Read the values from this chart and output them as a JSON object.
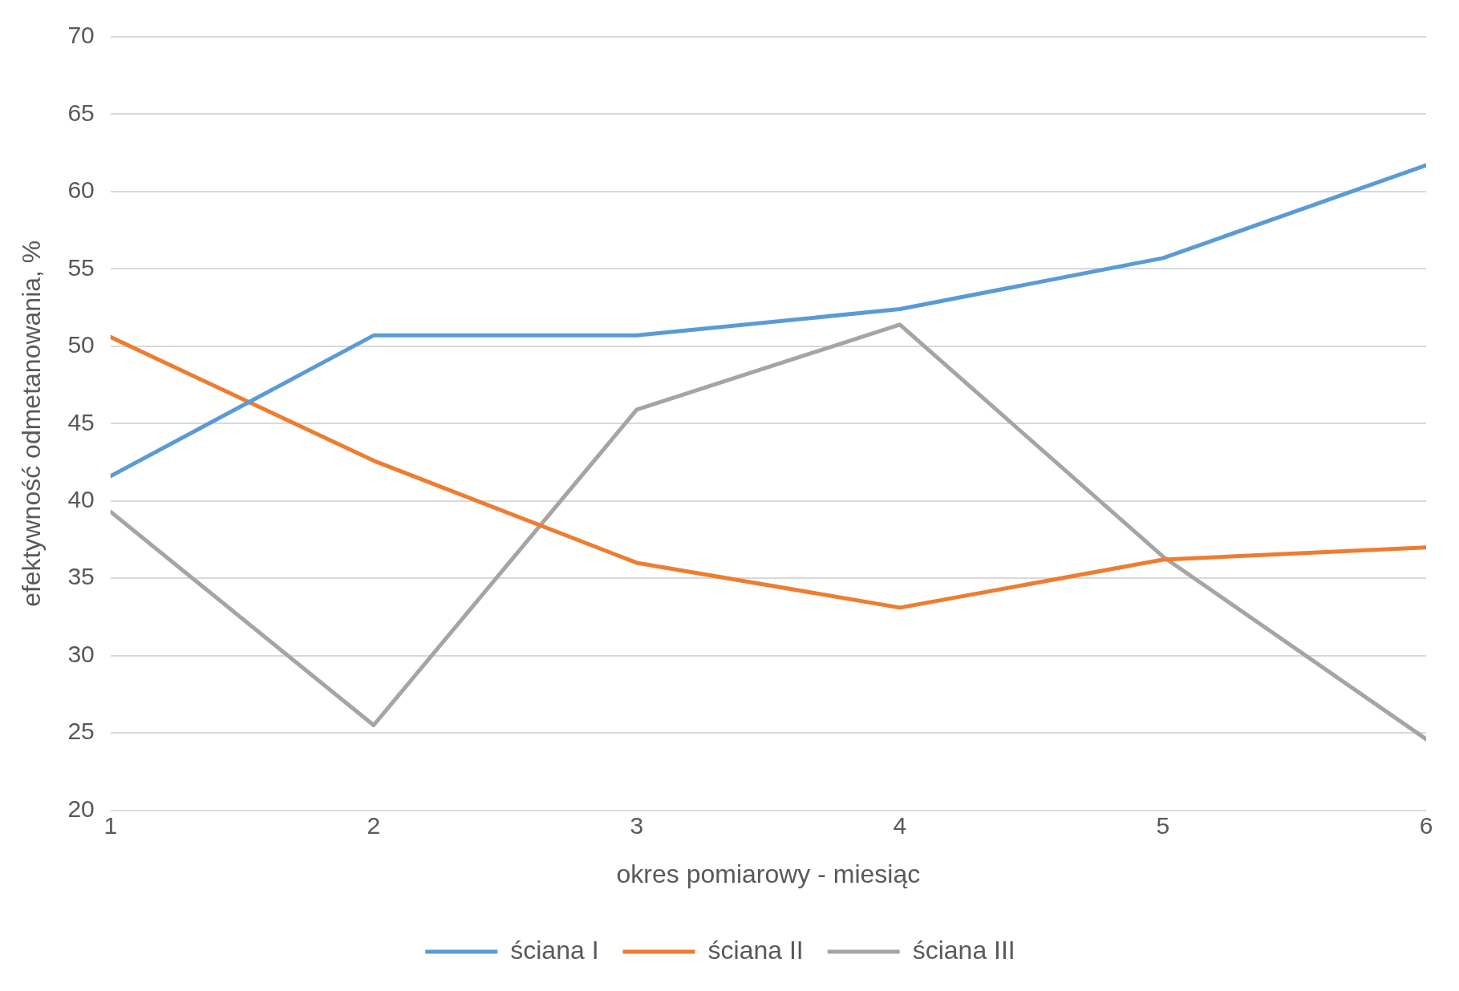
{
  "chart_data": {
    "type": "line",
    "xlabel": "okres pomiarowy - miesiąc",
    "ylabel": "efektywność odmetanowania, %",
    "x": [
      1,
      2,
      3,
      4,
      5,
      6
    ],
    "xlim": [
      1,
      6
    ],
    "xticks": [
      1,
      2,
      3,
      4,
      5,
      6
    ],
    "ylim": [
      20,
      70
    ],
    "yticks": [
      20,
      25,
      30,
      35,
      40,
      45,
      50,
      55,
      60,
      65,
      70
    ],
    "grid": "y",
    "legend": "bottom",
    "marker": "none",
    "line_style": "solid",
    "series": [
      {
        "name": "ściana I",
        "color": "#5b9bd5",
        "values": [
          41.6,
          50.7,
          50.7,
          52.4,
          55.7,
          61.7
        ]
      },
      {
        "name": "ściana II",
        "color": "#ed7d31",
        "values": [
          50.6,
          42.6,
          36.0,
          33.1,
          36.2,
          37.0
        ]
      },
      {
        "name": "ściana III",
        "color": "#a5a5a5",
        "values": [
          39.3,
          25.5,
          45.9,
          51.4,
          36.4,
          24.6
        ]
      }
    ]
  }
}
